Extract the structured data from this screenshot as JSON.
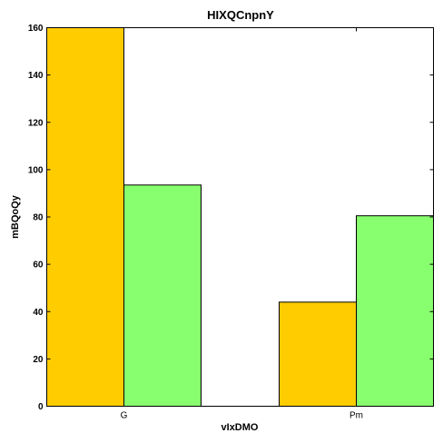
{
  "chart_data": {
    "type": "bar",
    "title": "HIXQCnpnY",
    "xlabel": "vIxDMO",
    "ylabel": "mBQoQy",
    "categories": [
      "G",
      "Pm"
    ],
    "series": [
      {
        "values": [
          160,
          44
        ],
        "color": "#ffcc00"
      },
      {
        "values": [
          93.5,
          80.5
        ],
        "color": "#88ff6e"
      }
    ],
    "ylim": [
      0,
      160
    ],
    "yticks": [
      0,
      20,
      40,
      60,
      80,
      100,
      120,
      140,
      160
    ],
    "grid": false,
    "legend": "none"
  }
}
